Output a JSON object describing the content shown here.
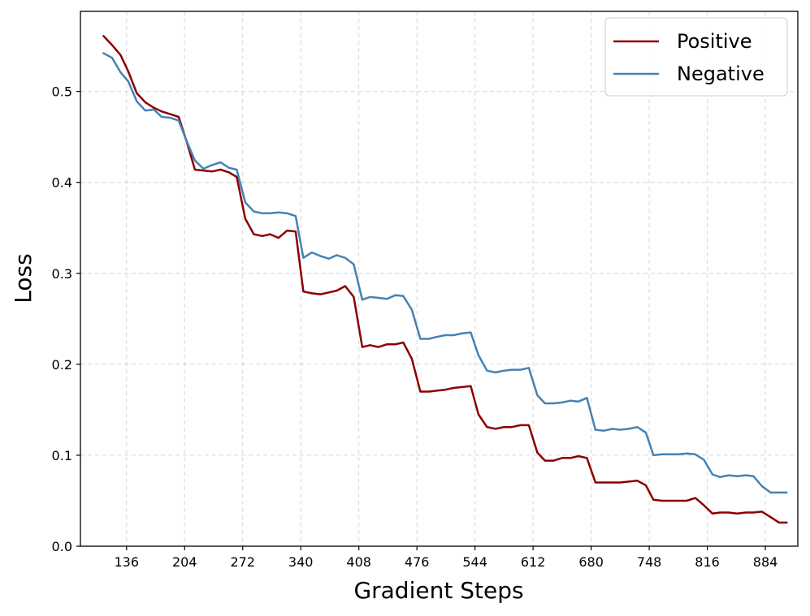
{
  "chart_data": {
    "type": "line",
    "xlabel": "Gradient Steps",
    "ylabel": "Loss",
    "x_ticks": [
      136,
      204,
      272,
      340,
      408,
      476,
      544,
      612,
      680,
      748,
      816,
      884
    ],
    "y_ticks": [
      "0.0",
      "0.1",
      "0.2",
      "0.3",
      "0.4",
      "0.5"
    ],
    "xlim": [
      82,
      922
    ],
    "ylim": [
      0.0,
      0.588
    ],
    "grid": true,
    "legend_position": "top-right",
    "x": [
      109,
      119,
      129,
      138,
      148,
      158,
      168,
      177,
      187,
      197,
      207,
      216,
      226,
      236,
      246,
      256,
      265,
      275,
      285,
      295,
      304,
      314,
      324,
      334,
      343,
      353,
      363,
      373,
      382,
      392,
      402,
      412,
      421,
      431,
      441,
      451,
      460,
      470,
      480,
      490,
      499,
      509,
      519,
      529,
      539,
      548,
      558,
      568,
      578,
      587,
      597,
      607,
      617,
      626,
      636,
      646,
      656,
      665,
      675,
      685,
      695,
      705,
      714,
      724,
      734,
      744,
      753,
      763,
      773,
      783,
      792,
      802,
      812,
      822,
      831,
      841,
      851,
      861,
      870,
      880,
      890,
      900,
      909
    ],
    "series": [
      {
        "name": "Positive",
        "color": "#8b0000",
        "values": [
          0.561,
          0.551,
          0.54,
          0.522,
          0.498,
          0.488,
          0.482,
          0.478,
          0.475,
          0.472,
          0.443,
          0.414,
          0.413,
          0.412,
          0.414,
          0.411,
          0.406,
          0.36,
          0.343,
          0.341,
          0.343,
          0.339,
          0.347,
          0.346,
          0.28,
          0.278,
          0.277,
          0.279,
          0.281,
          0.286,
          0.274,
          0.219,
          0.221,
          0.219,
          0.222,
          0.222,
          0.224,
          0.206,
          0.17,
          0.17,
          0.171,
          0.172,
          0.174,
          0.175,
          0.176,
          0.145,
          0.131,
          0.129,
          0.131,
          0.131,
          0.133,
          0.133,
          0.103,
          0.094,
          0.094,
          0.097,
          0.097,
          0.099,
          0.097,
          0.07,
          0.07,
          0.07,
          0.07,
          0.071,
          0.072,
          0.067,
          0.051,
          0.05,
          0.05,
          0.05,
          0.05,
          0.053,
          0.045,
          0.036,
          0.037,
          0.037,
          0.036,
          0.037,
          0.037,
          0.038,
          0.032,
          0.026,
          0.026
        ]
      },
      {
        "name": "Negative",
        "color": "#4682b4",
        "values": [
          0.542,
          0.537,
          0.521,
          0.511,
          0.489,
          0.479,
          0.48,
          0.472,
          0.471,
          0.468,
          0.444,
          0.424,
          0.415,
          0.419,
          0.422,
          0.416,
          0.414,
          0.378,
          0.368,
          0.366,
          0.366,
          0.367,
          0.366,
          0.363,
          0.317,
          0.323,
          0.319,
          0.316,
          0.32,
          0.317,
          0.31,
          0.271,
          0.274,
          0.273,
          0.272,
          0.276,
          0.275,
          0.26,
          0.228,
          0.228,
          0.23,
          0.232,
          0.232,
          0.234,
          0.235,
          0.21,
          0.193,
          0.191,
          0.193,
          0.194,
          0.194,
          0.196,
          0.166,
          0.157,
          0.157,
          0.158,
          0.16,
          0.159,
          0.163,
          0.128,
          0.127,
          0.129,
          0.128,
          0.129,
          0.131,
          0.125,
          0.1,
          0.101,
          0.101,
          0.101,
          0.102,
          0.101,
          0.095,
          0.079,
          0.076,
          0.078,
          0.077,
          0.078,
          0.077,
          0.066,
          0.059,
          0.059,
          0.059
        ]
      }
    ]
  }
}
